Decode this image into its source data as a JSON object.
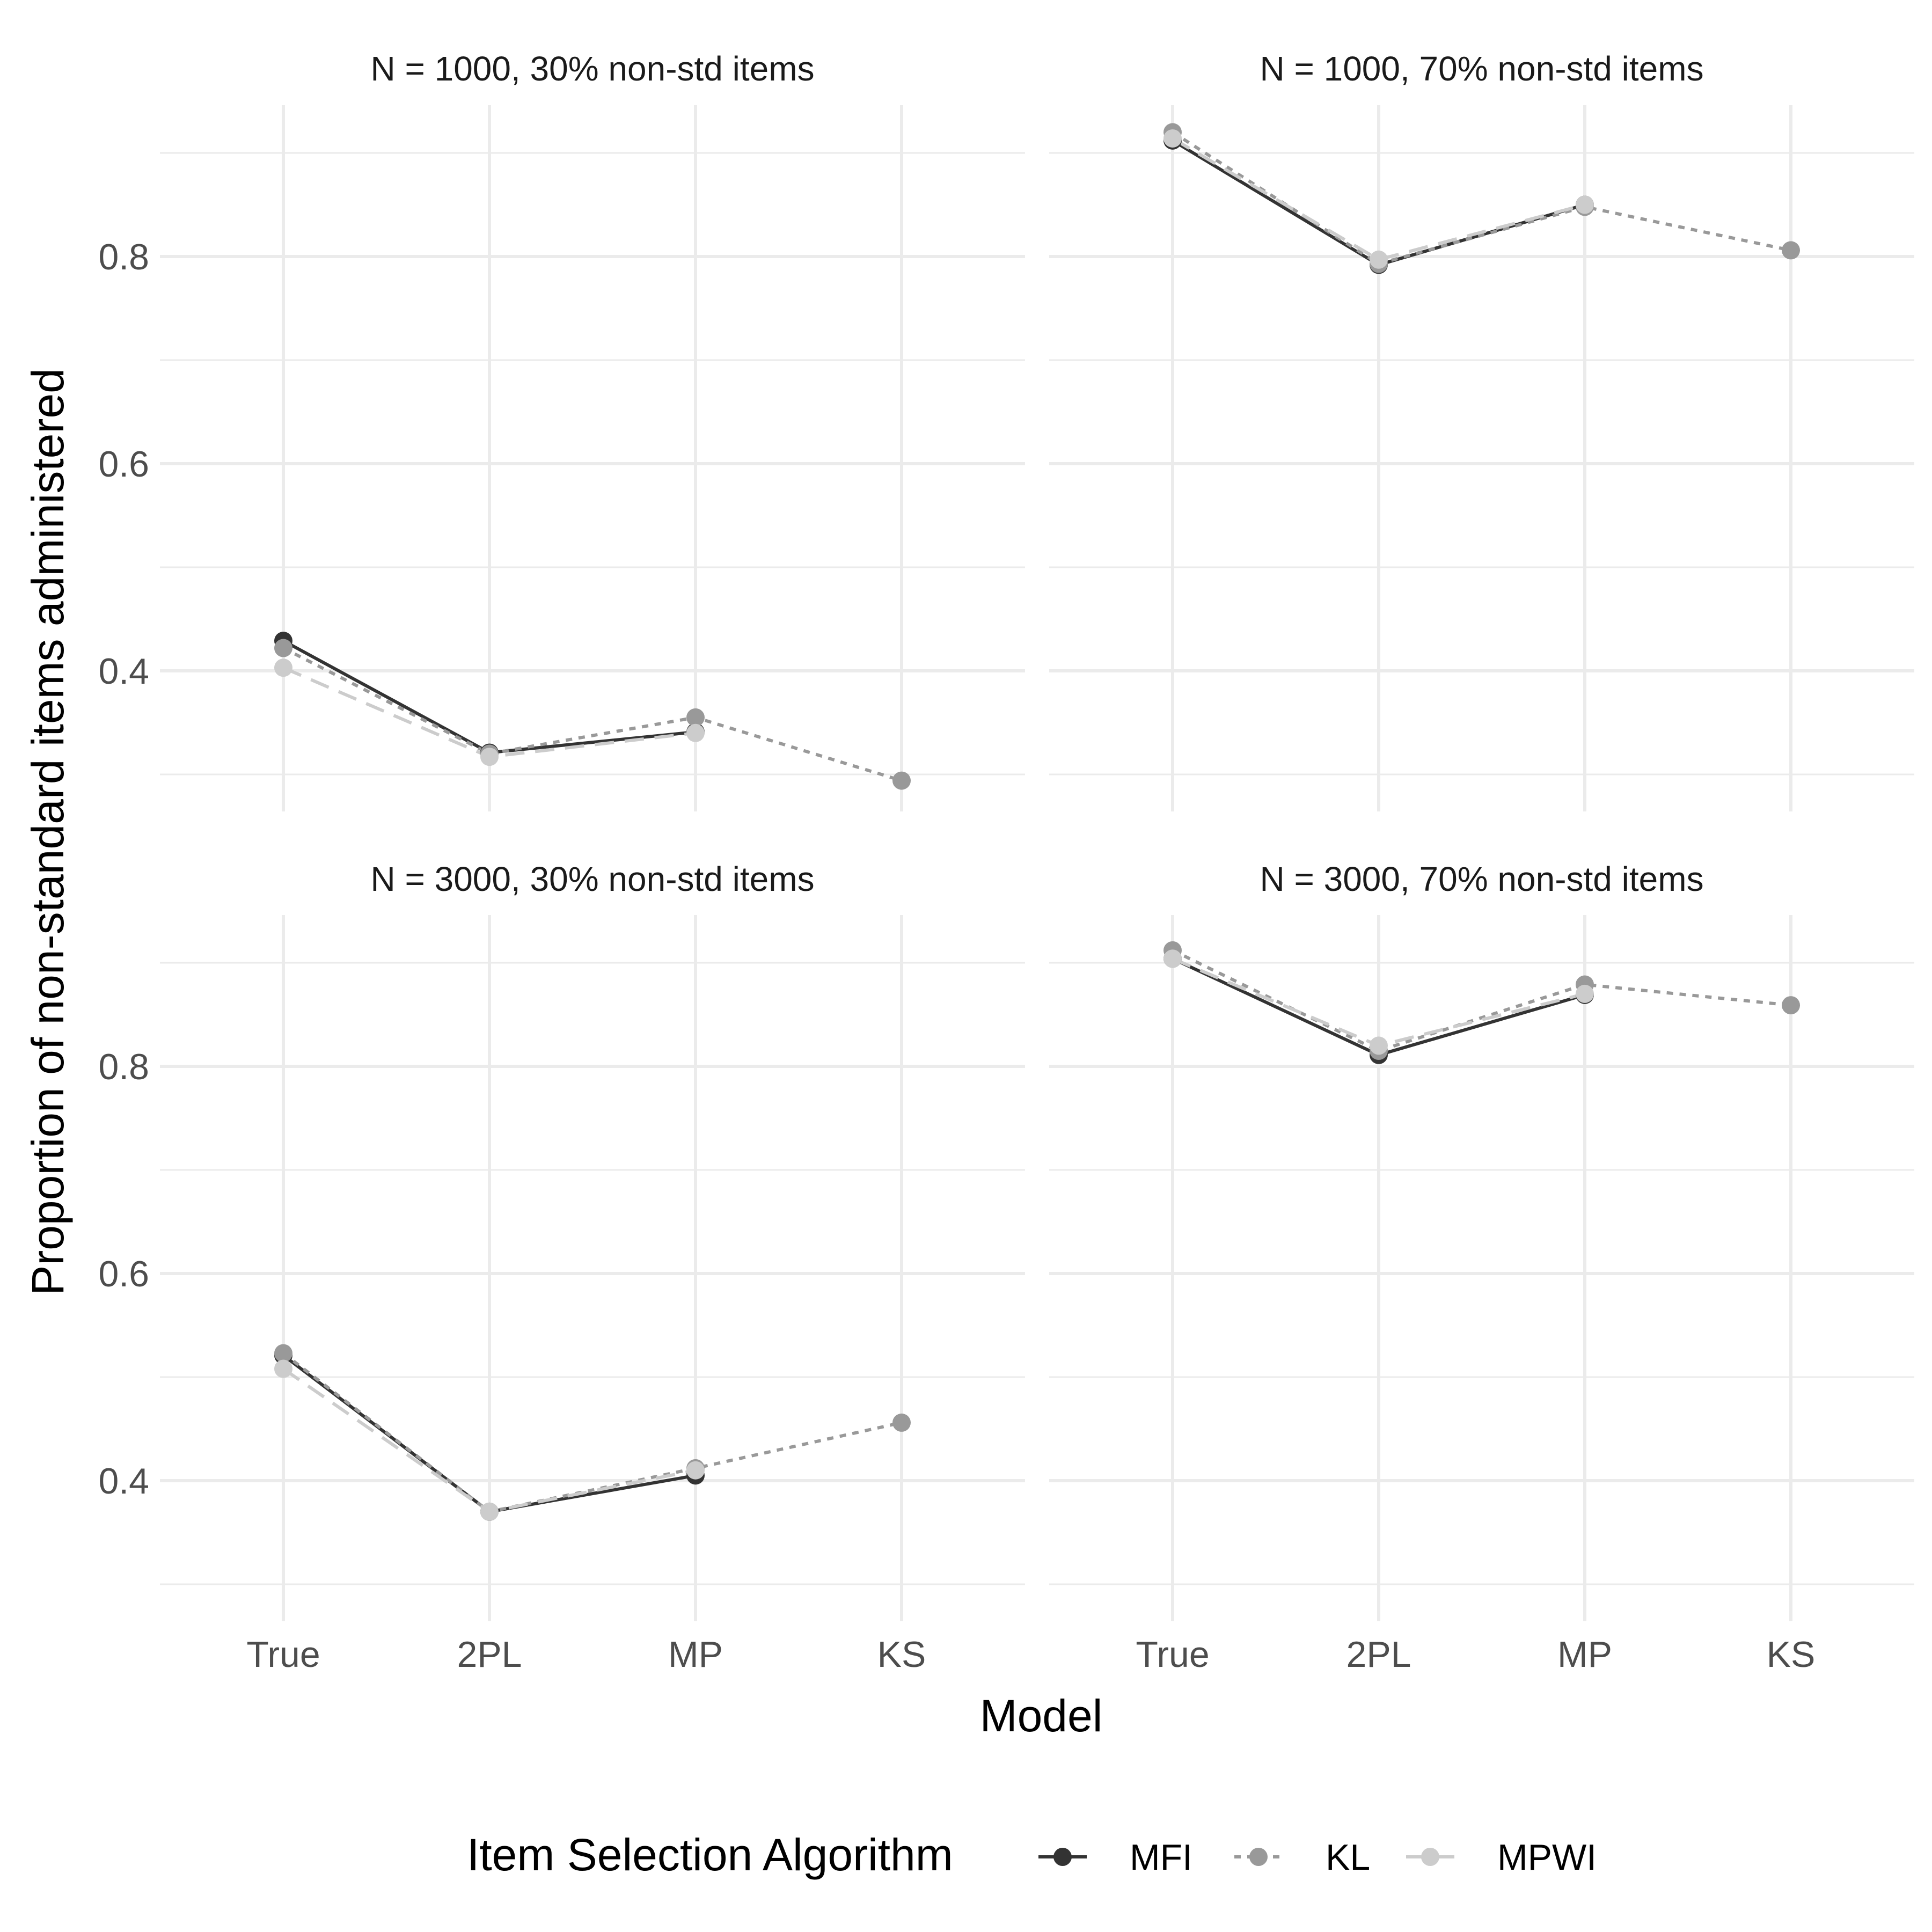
{
  "chart_data": {
    "type": "line",
    "xlabel": "Model",
    "ylabel": "Proportion of non-standard items administered",
    "categories": [
      "True",
      "2PL",
      "MP",
      "KS"
    ],
    "y_ticks": [
      "0.4",
      "0.6",
      "0.8"
    ],
    "grid": true,
    "legend": {
      "title": "Item Selection Algorithm",
      "placement": "bottom",
      "entries": [
        "MFI",
        "KL",
        "MPWI"
      ]
    },
    "series_styles": [
      {
        "name": "MFI",
        "color": "#333333",
        "dash": "solid"
      },
      {
        "name": "KL",
        "color": "#999999",
        "dash": "dotted"
      },
      {
        "name": "MPWI",
        "color": "#cccccc",
        "dash": "dashed"
      }
    ],
    "panels": [
      {
        "title": "N = 1000, 30% non-std items",
        "series": [
          {
            "name": "MFI",
            "values": [
              0.429,
              0.321,
              0.341,
              null
            ]
          },
          {
            "name": "KL",
            "values": [
              0.422,
              0.32,
              0.355,
              0.294
            ]
          },
          {
            "name": "MPWI",
            "values": [
              0.403,
              0.317,
              0.34,
              null
            ]
          }
        ]
      },
      {
        "title": "N = 1000, 70% non-std items",
        "series": [
          {
            "name": "MFI",
            "values": [
              0.912,
              0.792,
              0.85,
              null
            ]
          },
          {
            "name": "KL",
            "values": [
              0.92,
              0.793,
              0.848,
              0.806
            ]
          },
          {
            "name": "MPWI",
            "values": [
              0.914,
              0.797,
              0.85,
              null
            ]
          }
        ]
      },
      {
        "title": "N = 3000, 30% non-std items",
        "series": [
          {
            "name": "MFI",
            "values": [
              0.521,
              0.37,
              0.405,
              null
            ]
          },
          {
            "name": "KL",
            "values": [
              0.523,
              0.37,
              0.412,
              0.456
            ]
          },
          {
            "name": "MPWI",
            "values": [
              0.508,
              0.37,
              0.41,
              null
            ]
          }
        ]
      },
      {
        "title": "N = 3000, 70% non-std items",
        "series": [
          {
            "name": "MFI",
            "values": [
              0.904,
              0.811,
              0.869,
              null
            ]
          },
          {
            "name": "KL",
            "values": [
              0.912,
              0.815,
              0.879,
              0.859
            ]
          },
          {
            "name": "MPWI",
            "values": [
              0.904,
              0.82,
              0.87,
              null
            ]
          }
        ]
      }
    ]
  }
}
